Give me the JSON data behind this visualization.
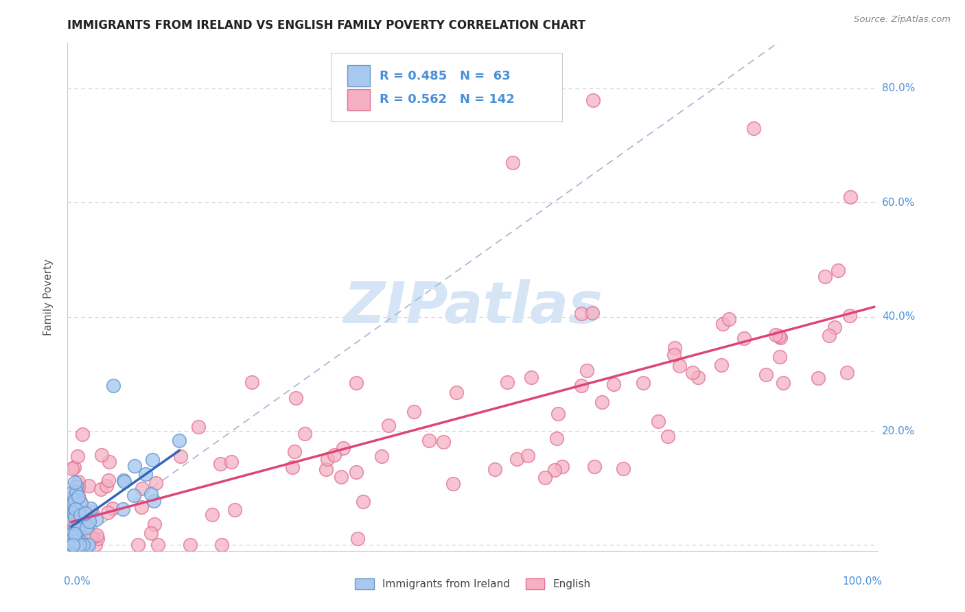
{
  "title": "IMMIGRANTS FROM IRELAND VS ENGLISH FAMILY POVERTY CORRELATION CHART",
  "source": "Source: ZipAtlas.com",
  "ylabel": "Family Poverty",
  "ytick_vals": [
    0.0,
    0.2,
    0.4,
    0.6,
    0.8
  ],
  "ytick_labels": [
    "",
    "20.0%",
    "40.0%",
    "60.0%",
    "80.0%"
  ],
  "legend_r1": "R = 0.485",
  "legend_n1": "N =  63",
  "legend_r2": "R = 0.562",
  "legend_n2": "N = 142",
  "ireland_color": "#a8c8f0",
  "english_color": "#f5b0c5",
  "ireland_edge": "#6699cc",
  "english_edge": "#e07090",
  "regline_ireland": "#3366bb",
  "regline_english": "#dd4477",
  "diag_color": "#aabbd4",
  "watermark_color": "#d5e5f5",
  "background_color": "#ffffff",
  "grid_color": "#cccccc",
  "tick_color": "#4a90d9",
  "title_color": "#222222",
  "source_color": "#888888",
  "legend_text_color": "#4a90d9",
  "label_color": "#555555"
}
